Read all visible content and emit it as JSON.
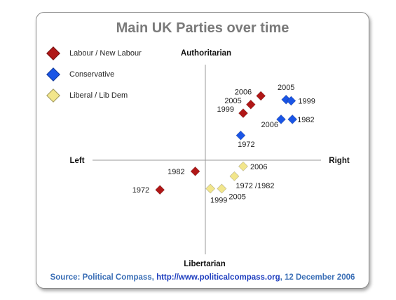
{
  "title": "Main UK Parties over time",
  "chart_data": {
    "type": "scatter",
    "title": "Main UK Parties over time",
    "axes": {
      "top": "Authoritarian",
      "bottom": "Libertarian",
      "left": "Left",
      "right": "Right"
    },
    "xlim": [
      -10,
      10
    ],
    "ylim": [
      -10,
      10
    ],
    "series": [
      {
        "name": "Labour / New Labour",
        "color": "#b01717",
        "points": [
          {
            "label": "2006",
            "x": 4.4,
            "y": 5.2
          },
          {
            "label": "2005",
            "x": 3.6,
            "y": 4.5
          },
          {
            "label": "1999",
            "x": 3.0,
            "y": 3.8
          },
          {
            "label": "1982",
            "x": -0.8,
            "y": -0.9
          },
          {
            "label": "1972",
            "x": -3.6,
            "y": -2.4
          }
        ]
      },
      {
        "name": "Conservative",
        "color": "#1a55e6",
        "points": [
          {
            "label": "2005",
            "x": 6.4,
            "y": 4.9
          },
          {
            "label": "1999",
            "x": 6.8,
            "y": 4.8
          },
          {
            "label": "2006",
            "x": 6.0,
            "y": 3.3
          },
          {
            "label": "1982",
            "x": 6.9,
            "y": 3.3
          },
          {
            "label": "1972",
            "x": 2.8,
            "y": 2.0
          }
        ]
      },
      {
        "name": "Liberal / Lib Dem",
        "color": "#f2e68c",
        "points": [
          {
            "label": "2006",
            "x": 3.0,
            "y": -0.5
          },
          {
            "label": "1972 /1982",
            "x": 2.3,
            "y": -1.3
          },
          {
            "label": "2005",
            "x": 1.3,
            "y": -2.3
          },
          {
            "label": "1999",
            "x": 0.4,
            "y": -2.3
          }
        ]
      }
    ]
  },
  "source": {
    "prefix": "Source: Political Compass, ",
    "url": "http://www.politicalcompass.org",
    "suffix": ", 12 December 2006"
  }
}
